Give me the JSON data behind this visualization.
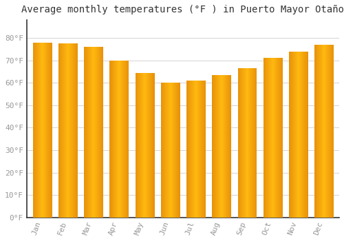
{
  "title": "Average monthly temperatures (°F ) in Puerto Mayor Otaño",
  "months": [
    "Jan",
    "Feb",
    "Mar",
    "Apr",
    "May",
    "Jun",
    "Jul",
    "Aug",
    "Sep",
    "Oct",
    "Nov",
    "Dec"
  ],
  "values": [
    78,
    77.5,
    76,
    70,
    64.5,
    60,
    61,
    63.5,
    66.5,
    71,
    74,
    77
  ],
  "bar_color_center": "#FFB90F",
  "bar_color_edge": "#E8920A",
  "ylim": [
    0,
    88
  ],
  "yticks": [
    0,
    10,
    20,
    30,
    40,
    50,
    60,
    70,
    80
  ],
  "background_color": "#FFFFFF",
  "grid_color": "#CCCCCC",
  "title_fontsize": 10,
  "tick_fontsize": 8,
  "tick_color": "#999999",
  "left_spine_color": "#333333"
}
